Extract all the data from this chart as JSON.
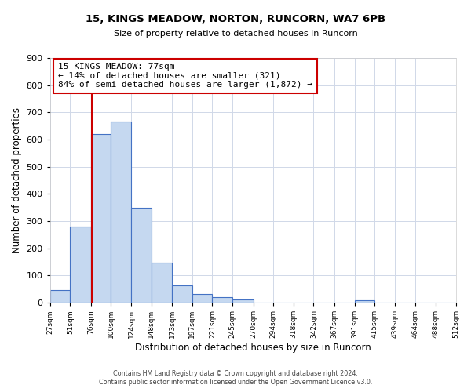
{
  "title": "15, KINGS MEADOW, NORTON, RUNCORN, WA7 6PB",
  "subtitle": "Size of property relative to detached houses in Runcorn",
  "xlabel": "Distribution of detached houses by size in Runcorn",
  "ylabel": "Number of detached properties",
  "bar_edges": [
    27,
    51,
    76,
    100,
    124,
    148,
    173,
    197,
    221,
    245,
    270,
    294,
    318,
    342,
    367,
    391,
    415,
    439,
    464,
    488,
    512
  ],
  "bar_heights": [
    45,
    280,
    620,
    665,
    348,
    148,
    65,
    32,
    20,
    12,
    0,
    0,
    0,
    0,
    0,
    8,
    0,
    0,
    0,
    0
  ],
  "bar_color": "#c5d8f0",
  "bar_edge_color": "#4472c4",
  "tick_labels": [
    "27sqm",
    "51sqm",
    "76sqm",
    "100sqm",
    "124sqm",
    "148sqm",
    "173sqm",
    "197sqm",
    "221sqm",
    "245sqm",
    "270sqm",
    "294sqm",
    "318sqm",
    "342sqm",
    "367sqm",
    "391sqm",
    "415sqm",
    "439sqm",
    "464sqm",
    "488sqm",
    "512sqm"
  ],
  "vline_x": 77,
  "vline_color": "#cc0000",
  "ylim": [
    0,
    900
  ],
  "yticks": [
    0,
    100,
    200,
    300,
    400,
    500,
    600,
    700,
    800,
    900
  ],
  "annotation_text": "15 KINGS MEADOW: 77sqm\n← 14% of detached houses are smaller (321)\n84% of semi-detached houses are larger (1,872) →",
  "annotation_box_color": "#ffffff",
  "annotation_box_edge": "#cc0000",
  "footer1": "Contains HM Land Registry data © Crown copyright and database right 2024.",
  "footer2": "Contains public sector information licensed under the Open Government Licence v3.0.",
  "bg_color": "#ffffff",
  "grid_color": "#d0d8e8"
}
